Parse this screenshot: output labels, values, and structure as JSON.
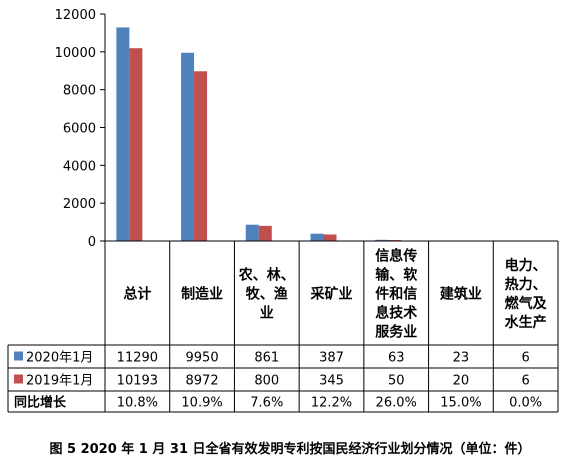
{
  "chart_data": {
    "type": "bar",
    "categories": [
      "总计",
      "制造业",
      [
        "农、林、",
        "牧、渔",
        "业"
      ],
      "采矿业",
      [
        "信息传",
        "输、软",
        "件和信",
        "息技术",
        "服务业"
      ],
      "建筑业",
      [
        "电力、",
        "热力、",
        "燃气及",
        "水生产"
      ]
    ],
    "series": [
      {
        "name": "2020年1月",
        "color": "#4F81BD",
        "values": [
          11290,
          9950,
          861,
          387,
          63,
          23,
          6
        ]
      },
      {
        "name": "2019年1月",
        "color": "#C0504D",
        "values": [
          10193,
          8972,
          800,
          345,
          50,
          20,
          6
        ]
      }
    ],
    "extra_row": {
      "name": "同比增长",
      "values": [
        "10.8%",
        "10.9%",
        "7.6%",
        "12.2%",
        "26.0%",
        "15.0%",
        "0.0%"
      ]
    },
    "ylim": [
      0,
      12000
    ],
    "yticks": [
      0,
      2000,
      4000,
      6000,
      8000,
      10000,
      12000
    ],
    "title": "",
    "xlabel": "",
    "ylabel": "",
    "grid": false,
    "legend": "in data table rows"
  },
  "caption": "图 5 2020 年 1 月 31 日全省有效发明专利按国民经济行业划分情况（单位：件）"
}
